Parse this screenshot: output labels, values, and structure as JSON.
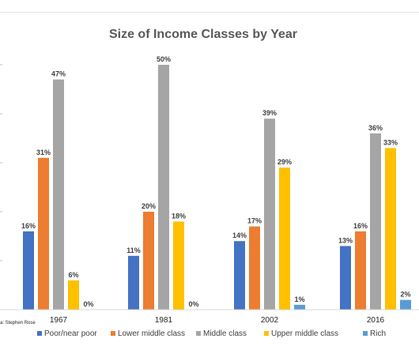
{
  "chart_data": {
    "type": "bar",
    "title": "Size of Income Classes by Year",
    "categories": [
      "1967",
      "1981",
      "2002",
      "2016"
    ],
    "series": [
      {
        "name": "Poor/near poor",
        "color": "#4472C4",
        "values": [
          16,
          11,
          14,
          13
        ],
        "labels": [
          "16%",
          "11%",
          "14%",
          "13%"
        ]
      },
      {
        "name": "Lower middle class",
        "color": "#ED7D31",
        "values": [
          31,
          20,
          17,
          16
        ],
        "labels": [
          "31%",
          "20%",
          "17%",
          "16%"
        ]
      },
      {
        "name": "Middle class",
        "color": "#A5A5A5",
        "values": [
          47,
          50,
          39,
          36
        ],
        "labels": [
          "47%",
          "50%",
          "39%",
          "36%"
        ]
      },
      {
        "name": "Upper middle class",
        "color": "#FFC000",
        "values": [
          6,
          18,
          29,
          33
        ],
        "labels": [
          "6%",
          "18%",
          "29%",
          "33%"
        ]
      },
      {
        "name": "Rich",
        "color": "#5B9BD5",
        "values": [
          0,
          0,
          1,
          2
        ],
        "labels": [
          "0%",
          "0%",
          "1%",
          "2%"
        ]
      }
    ],
    "ylim": [
      0,
      50
    ],
    "legend_position": "bottom",
    "gridlines": false,
    "source": "a: Stephen Rose"
  }
}
